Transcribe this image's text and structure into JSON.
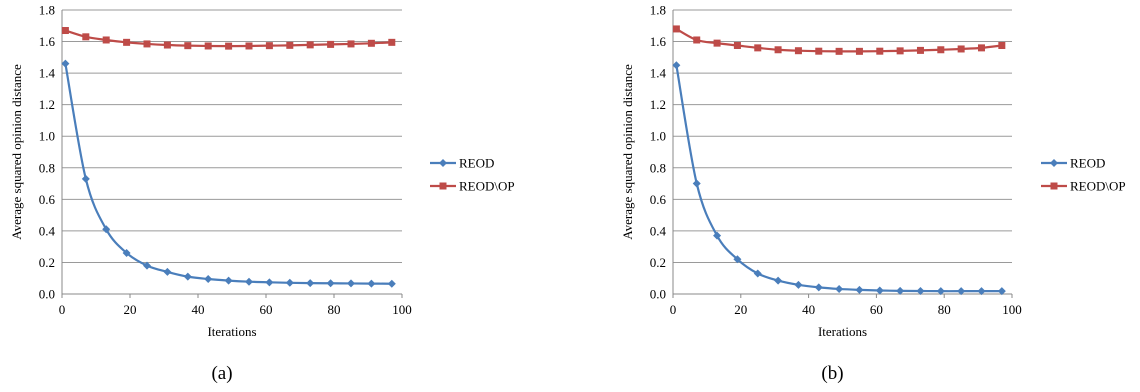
{
  "colors": {
    "reod": "#4a7ebb",
    "reod_op": "#be4b48",
    "grid": "#9a9a9a",
    "axis": "#888888"
  },
  "chart_data": [
    {
      "type": "line",
      "panel_label": "(a)",
      "xlabel": "Iterations",
      "ylabel": "Average squared opinion distance",
      "xlim": [
        0,
        100
      ],
      "ylim": [
        0,
        1.8
      ],
      "xticks": [
        "0",
        "20",
        "40",
        "60",
        "80",
        "100"
      ],
      "yticks": [
        "0.0",
        "0.2",
        "0.4",
        "0.6",
        "0.8",
        "1.0",
        "1.2",
        "1.4",
        "1.6",
        "1.8"
      ],
      "grid": "horizontal",
      "legend": "right",
      "x": [
        1,
        7,
        13,
        19,
        25,
        31,
        37,
        43,
        49,
        55,
        61,
        67,
        73,
        79,
        85,
        91,
        97
      ],
      "series": [
        {
          "name": "REOD",
          "marker": "diamond",
          "color": "#4a7ebb",
          "values": [
            1.46,
            0.73,
            0.41,
            0.26,
            0.18,
            0.14,
            0.11,
            0.095,
            0.085,
            0.078,
            0.074,
            0.071,
            0.069,
            0.068,
            0.067,
            0.066,
            0.065
          ]
        },
        {
          "name": "REOD\\OP",
          "marker": "square",
          "color": "#be4b48",
          "values": [
            1.67,
            1.63,
            1.61,
            1.595,
            1.585,
            1.578,
            1.574,
            1.572,
            1.571,
            1.572,
            1.574,
            1.576,
            1.579,
            1.582,
            1.585,
            1.589,
            1.595
          ]
        }
      ]
    },
    {
      "type": "line",
      "panel_label": "(b)",
      "xlabel": "Iterations",
      "ylabel": "Average squared opinion distance",
      "xlim": [
        0,
        100
      ],
      "ylim": [
        0,
        1.8
      ],
      "xticks": [
        "0",
        "20",
        "40",
        "60",
        "80",
        "100"
      ],
      "yticks": [
        "0.0",
        "0.2",
        "0.4",
        "0.6",
        "0.8",
        "1.0",
        "1.2",
        "1.4",
        "1.6",
        "1.8"
      ],
      "grid": "horizontal",
      "legend": "right",
      "x": [
        1,
        7,
        13,
        19,
        25,
        31,
        37,
        43,
        49,
        55,
        61,
        67,
        73,
        79,
        85,
        91,
        97
      ],
      "series": [
        {
          "name": "REOD",
          "marker": "diamond",
          "color": "#4a7ebb",
          "values": [
            1.45,
            0.7,
            0.37,
            0.22,
            0.13,
            0.085,
            0.058,
            0.042,
            0.032,
            0.026,
            0.022,
            0.02,
            0.019,
            0.018,
            0.018,
            0.018,
            0.018
          ]
        },
        {
          "name": "REOD\\OP",
          "marker": "square",
          "color": "#be4b48",
          "values": [
            1.68,
            1.61,
            1.59,
            1.575,
            1.56,
            1.548,
            1.542,
            1.539,
            1.538,
            1.538,
            1.539,
            1.541,
            1.544,
            1.548,
            1.553,
            1.56,
            1.575
          ]
        }
      ]
    }
  ]
}
